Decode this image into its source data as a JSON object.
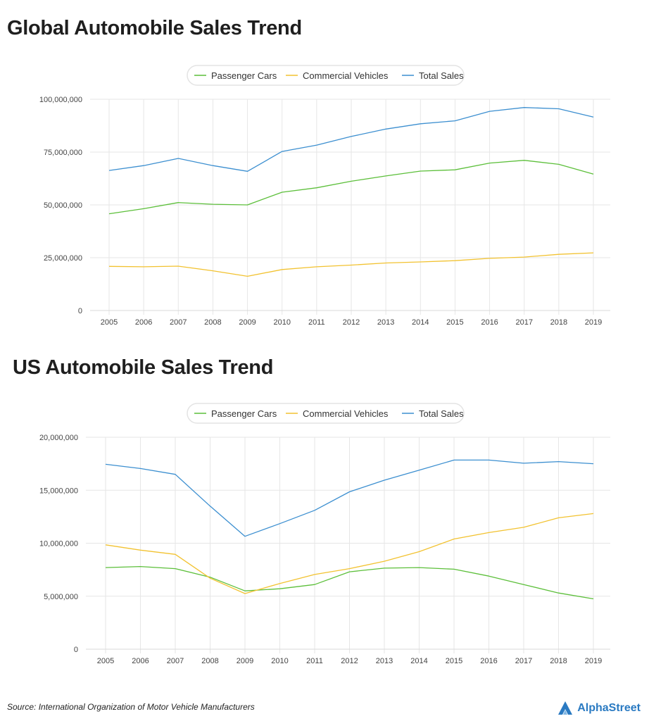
{
  "source": "Source: International Organization of Motor Vehicle Manufacturers",
  "brand": {
    "name": "AlphaStreet",
    "icon": "alphastreet-logo-icon",
    "color": "#2a7ac2"
  },
  "colors": {
    "passenger": "#5cbf3a",
    "commercial": "#f2c230",
    "total": "#3c8fd0"
  },
  "chart_data": [
    {
      "type": "line",
      "title": "Global Automobile Sales Trend",
      "xlabel": "",
      "ylabel": "",
      "legend_position": "top-center",
      "grid": true,
      "x": [
        "2005",
        "2006",
        "2007",
        "2008",
        "2009",
        "2010",
        "2011",
        "2012",
        "2013",
        "2014",
        "2015",
        "2016",
        "2017",
        "2018",
        "2019"
      ],
      "ylim": [
        0,
        100000000
      ],
      "yticks": [
        0,
        25000000,
        50000000,
        75000000,
        100000000
      ],
      "ytick_labels": [
        "0",
        "25,000,000",
        "50,000,000",
        "75,000,000",
        "100,000,000"
      ],
      "series": [
        {
          "name": "Passenger Cars",
          "color": "#5cbf3a",
          "values": [
            45800000,
            48200000,
            51100000,
            50300000,
            50000000,
            56000000,
            58100000,
            61200000,
            63700000,
            66000000,
            66600000,
            69800000,
            71100000,
            69200000,
            64600000
          ]
        },
        {
          "name": "Commercial Vehicles",
          "color": "#f2c230",
          "values": [
            20900000,
            20700000,
            21000000,
            18800000,
            16200000,
            19400000,
            20700000,
            21500000,
            22500000,
            23000000,
            23600000,
            24700000,
            25300000,
            26600000,
            27300000
          ]
        },
        {
          "name": "Total Sales",
          "color": "#3c8fd0",
          "values": [
            66300000,
            68600000,
            72000000,
            68600000,
            65900000,
            75300000,
            78300000,
            82400000,
            85900000,
            88400000,
            89800000,
            94300000,
            96100000,
            95500000,
            91600000
          ]
        }
      ]
    },
    {
      "type": "line",
      "title": "US Automobile Sales Trend",
      "xlabel": "",
      "ylabel": "",
      "legend_position": "top-center",
      "grid": true,
      "x": [
        "2005",
        "2006",
        "2007",
        "2008",
        "2009",
        "2010",
        "2011",
        "2012",
        "2013",
        "2014",
        "2015",
        "2016",
        "2017",
        "2018",
        "2019"
      ],
      "ylim": [
        0,
        20000000
      ],
      "yticks": [
        0,
        5000000,
        10000000,
        15000000,
        20000000
      ],
      "ytick_labels": [
        "0",
        "5,000,000",
        "10,000,000",
        "15,000,000",
        "20,000,000"
      ],
      "series": [
        {
          "name": "Passenger Cars",
          "color": "#5cbf3a",
          "values": [
            7700000,
            7800000,
            7600000,
            6800000,
            5500000,
            5700000,
            6100000,
            7300000,
            7650000,
            7700000,
            7550000,
            6900000,
            6100000,
            5300000,
            4750000
          ]
        },
        {
          "name": "Commercial Vehicles",
          "color": "#f2c230",
          "values": [
            9850000,
            9350000,
            8950000,
            6700000,
            5250000,
            6200000,
            7050000,
            7600000,
            8300000,
            9200000,
            10400000,
            11000000,
            11500000,
            12400000,
            12800000
          ]
        },
        {
          "name": "Total Sales",
          "color": "#3c8fd0",
          "values": [
            17450000,
            17050000,
            16500000,
            13500000,
            10650000,
            11850000,
            13100000,
            14850000,
            15950000,
            16900000,
            17850000,
            17850000,
            17550000,
            17700000,
            17500000
          ]
        }
      ]
    }
  ]
}
